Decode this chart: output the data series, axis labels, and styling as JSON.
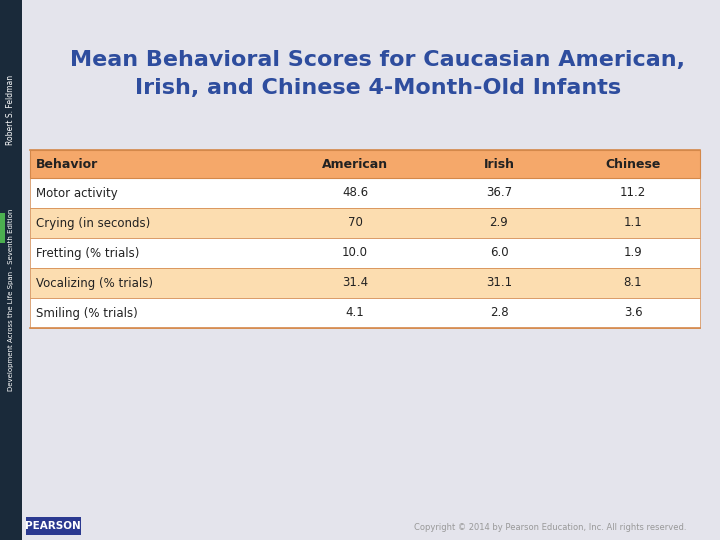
{
  "title_line1": "Mean Behavioral Scores for Caucasian American,",
  "title_line2": "Irish, and Chinese 4-Month-Old Infants",
  "title_color": "#2E4D9E",
  "slide_bg": "#E4E4EC",
  "sidebar_color": "#1a2a3a",
  "sidebar_text1": "Robert S. Feldman",
  "sidebar_text2": "Development Across the Life Span - Seventh Edition",
  "sidebar_divider_color": "#4CAF50",
  "bottom_text": "Copyright © 2014 by Pearson Education, Inc. All rights reserved.",
  "header_bg": "#F5A86A",
  "row_bg_alt": "#FCDDB0",
  "row_bg_white": "#FFFFFF",
  "border_color": "#D4884A",
  "col_headers": [
    "Behavior",
    "American",
    "Irish",
    "Chinese"
  ],
  "rows": [
    [
      "Motor activity",
      "48.6",
      "36.7",
      "11.2"
    ],
    [
      "Crying (in seconds)",
      "70",
      "2.9",
      "1.1"
    ],
    [
      "Fretting (% trials)",
      "10.0",
      "6.0",
      "1.9"
    ],
    [
      "Vocalizing (% trials)",
      "31.4",
      "31.1",
      "8.1"
    ],
    [
      "Smiling (% trials)",
      "4.1",
      "2.8",
      "3.6"
    ]
  ],
  "font_size_title": 16,
  "font_size_table_header": 9,
  "font_size_table_body": 8.5
}
